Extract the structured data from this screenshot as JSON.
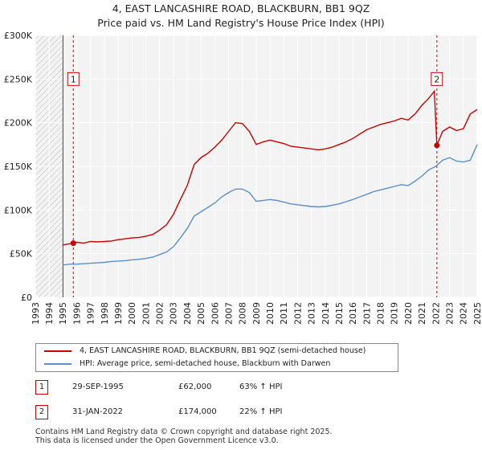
{
  "chart_data": {
    "type": "line",
    "title": "4, EAST LANCASHIRE ROAD, BLACKBURN, BB1 9QZ",
    "subtitle": "Price paid vs. HM Land Registry's House Price Index (HPI)",
    "xlabel": "",
    "ylabel": "",
    "xlim": [
      1993,
      2025
    ],
    "ylim": [
      0,
      300000
    ],
    "grid": true,
    "x_ticks": [
      "1993",
      "1994",
      "1995",
      "1996",
      "1997",
      "1998",
      "1999",
      "2000",
      "2001",
      "2002",
      "2003",
      "2004",
      "2005",
      "2006",
      "2007",
      "2008",
      "2009",
      "2010",
      "2011",
      "2012",
      "2013",
      "2014",
      "2015",
      "2016",
      "2017",
      "2018",
      "2019",
      "2020",
      "2021",
      "2022",
      "2023",
      "2024",
      "2025"
    ],
    "y_ticks": [
      {
        "value": 0,
        "label": "£0"
      },
      {
        "value": 50000,
        "label": "£50K"
      },
      {
        "value": 100000,
        "label": "£100K"
      },
      {
        "value": 150000,
        "label": "£150K"
      },
      {
        "value": 200000,
        "label": "£200K"
      },
      {
        "value": 250000,
        "label": "£250K"
      },
      {
        "value": 300000,
        "label": "£300K"
      }
    ],
    "data_start_year": 1995,
    "series": [
      {
        "name": "4, EAST LANCASHIRE ROAD, BLACKBURN, BB1 9QZ (semi-detached house)",
        "color": "#cc0000",
        "x": [
          1995.0,
          1995.75,
          1996.0,
          1996.5,
          1997.0,
          1997.5,
          1998.0,
          1998.5,
          1999.0,
          1999.5,
          2000.0,
          2000.5,
          2001.0,
          2001.5,
          2002.0,
          2002.5,
          2003.0,
          2003.5,
          2004.0,
          2004.5,
          2005.0,
          2005.5,
          2006.0,
          2006.5,
          2007.0,
          2007.5,
          2008.0,
          2008.5,
          2009.0,
          2009.5,
          2010.0,
          2010.5,
          2011.0,
          2011.5,
          2012.0,
          2012.5,
          2013.0,
          2013.5,
          2014.0,
          2014.5,
          2015.0,
          2015.5,
          2016.0,
          2016.5,
          2017.0,
          2017.5,
          2018.0,
          2018.5,
          2019.0,
          2019.5,
          2020.0,
          2020.5,
          2021.0,
          2021.5,
          2021.9,
          2022.08,
          2022.5,
          2023.0,
          2023.5,
          2024.0,
          2024.5,
          2025.0
        ],
        "values": [
          60000,
          62000,
          63000,
          62000,
          64000,
          63500,
          64000,
          64500,
          66000,
          67000,
          68000,
          68500,
          70000,
          72000,
          77000,
          83000,
          95000,
          112000,
          128000,
          152000,
          160000,
          165000,
          172000,
          180000,
          190000,
          200000,
          199000,
          190000,
          175000,
          178000,
          180000,
          178000,
          176000,
          173000,
          172000,
          171000,
          170000,
          169000,
          170000,
          172000,
          175000,
          178000,
          182000,
          187000,
          192000,
          195000,
          198000,
          200000,
          202000,
          205000,
          203000,
          210000,
          220000,
          228000,
          236000,
          174000,
          190000,
          195000,
          191000,
          193000,
          210000,
          215000
        ]
      },
      {
        "name": "HPI: Average price, semi-detached house, Blackburn with Darwen",
        "color": "#5b8fcc",
        "x": [
          1995.0,
          1995.5,
          1996.0,
          1996.5,
          1997.0,
          1997.5,
          1998.0,
          1998.5,
          1999.0,
          1999.5,
          2000.0,
          2000.5,
          2001.0,
          2001.5,
          2002.0,
          2002.5,
          2003.0,
          2003.5,
          2004.0,
          2004.5,
          2005.0,
          2005.5,
          2006.0,
          2006.5,
          2007.0,
          2007.5,
          2008.0,
          2008.5,
          2009.0,
          2009.5,
          2010.0,
          2010.5,
          2011.0,
          2011.5,
          2012.0,
          2012.5,
          2013.0,
          2013.5,
          2014.0,
          2014.5,
          2015.0,
          2015.5,
          2016.0,
          2016.5,
          2017.0,
          2017.5,
          2018.0,
          2018.5,
          2019.0,
          2019.5,
          2020.0,
          2020.5,
          2021.0,
          2021.5,
          2022.0,
          2022.5,
          2023.0,
          2023.5,
          2024.0,
          2024.5,
          2025.0
        ],
        "values": [
          37000,
          38000,
          38000,
          38500,
          39000,
          39500,
          40000,
          41000,
          41500,
          42000,
          43000,
          43500,
          44500,
          46000,
          49000,
          52000,
          58000,
          68000,
          79000,
          93000,
          98000,
          103000,
          108000,
          115000,
          120000,
          124000,
          124000,
          120000,
          110000,
          111000,
          112000,
          111000,
          109000,
          107000,
          106000,
          105000,
          104000,
          103500,
          104000,
          105500,
          107000,
          109500,
          112000,
          115000,
          118000,
          121000,
          123000,
          125000,
          127000,
          129000,
          128000,
          133000,
          139000,
          146000,
          150000,
          157000,
          160000,
          156000,
          155000,
          157000,
          175000
        ]
      }
    ],
    "sales": [
      {
        "id": "1",
        "x": 1995.75,
        "value": 62000,
        "date": "29-SEP-1995",
        "price": "£62,000",
        "hpi_change": "63% ↑ HPI"
      },
      {
        "id": "2",
        "x": 2022.08,
        "value": 174000,
        "date": "31-JAN-2022",
        "price": "£174,000",
        "hpi_change": "22% ↑ HPI"
      }
    ]
  },
  "legend": {
    "property_label": "4, EAST LANCASHIRE ROAD, BLACKBURN, BB1 9QZ (semi-detached house)",
    "hpi_label": "HPI: Average price, semi-detached house, Blackburn with Darwen"
  },
  "footer": {
    "line1": "Contains HM Land Registry data © Crown copyright and database right 2025.",
    "line2": "This data is licensed under the Open Government Licence v3.0."
  }
}
